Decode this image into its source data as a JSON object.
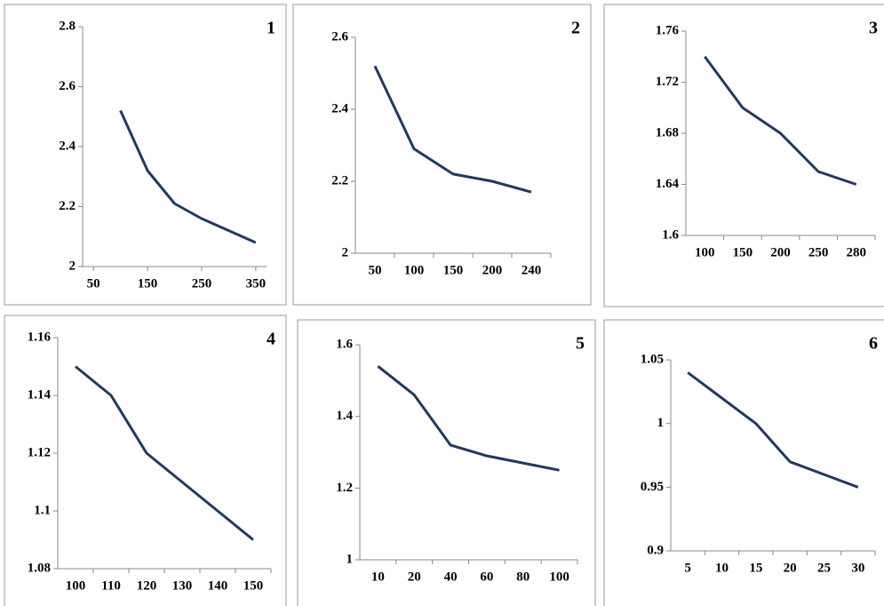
{
  "chart_data": [
    {
      "type": "line",
      "title": "1",
      "x": [
        100,
        150,
        200,
        250,
        300,
        350
      ],
      "xlim": [
        30,
        370
      ],
      "xticks": [
        50,
        150,
        250,
        350
      ],
      "values": [
        2.52,
        2.32,
        2.21,
        2.16,
        2.12,
        2.08
      ],
      "color": "#23395d",
      "ylim": [
        2,
        2.8
      ],
      "yticks": [
        2,
        2.2,
        2.4,
        2.6,
        2.8
      ]
    },
    {
      "type": "line",
      "title": "2",
      "categories": [
        "50",
        "100",
        "150",
        "200",
        "240"
      ],
      "values": [
        2.52,
        2.29,
        2.22,
        2.2,
        2.17
      ],
      "color": "#23395d",
      "ylim": [
        2,
        2.6
      ],
      "yticks": [
        2,
        2.2,
        2.4,
        2.6
      ]
    },
    {
      "type": "line",
      "title": "3",
      "categories": [
        "100",
        "150",
        "200",
        "250",
        "280"
      ],
      "values": [
        1.74,
        1.7,
        1.68,
        1.65,
        1.64
      ],
      "color": "#23395d",
      "ylim": [
        1.6,
        1.76
      ],
      "yticks": [
        1.6,
        1.64,
        1.68,
        1.72,
        1.76
      ]
    },
    {
      "type": "line",
      "title": "4",
      "categories": [
        "100",
        "110",
        "120",
        "130",
        "140",
        "150"
      ],
      "values": [
        1.15,
        1.14,
        1.12,
        1.11,
        1.1,
        1.09
      ],
      "color": "#23395d",
      "ylim": [
        1.08,
        1.16
      ],
      "yticks": [
        1.08,
        1.1,
        1.12,
        1.14,
        1.16
      ]
    },
    {
      "type": "line",
      "title": "5",
      "categories": [
        "10",
        "20",
        "40",
        "60",
        "80",
        "100"
      ],
      "values": [
        1.54,
        1.46,
        1.32,
        1.29,
        1.27,
        1.25
      ],
      "color": "#23395d",
      "ylim": [
        1,
        1.6
      ],
      "yticks": [
        1,
        1.2,
        1.4,
        1.6
      ]
    },
    {
      "type": "line",
      "title": "6",
      "categories": [
        "5",
        "10",
        "15",
        "20",
        "25",
        "30"
      ],
      "values": [
        1.04,
        1.02,
        1.0,
        0.97,
        0.96,
        0.95
      ],
      "color": "#23395d",
      "ylim": [
        0.9,
        1.05
      ],
      "yticks": [
        0.9,
        0.95,
        1,
        1.05
      ]
    }
  ]
}
